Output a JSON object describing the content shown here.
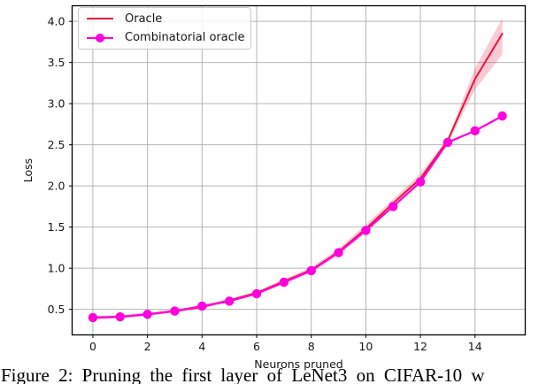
{
  "caption": {
    "text": "Figure 2: Pruning the first layer of LeNet3 on CIFAR-10 w"
  },
  "colors": {
    "oracle_red": "#e8143c",
    "band_pink": "#e8143c",
    "magenta": "#ff00dd",
    "grid_gray": "#b4b4b4",
    "axis_black": "#000000"
  },
  "chart_data": {
    "type": "line",
    "title": "",
    "xlabel": "Neurons pruned",
    "ylabel": "Loss",
    "grid": true,
    "legend_position": "upper-left",
    "xlim": [
      -0.76,
      15.84
    ],
    "ylim": [
      0.19,
      4.19
    ],
    "xticks": [
      0,
      2,
      4,
      6,
      8,
      10,
      12,
      14
    ],
    "yticks": [
      0.5,
      1.0,
      1.5,
      2.0,
      2.5,
      3.0,
      3.5,
      4.0
    ],
    "x": [
      0,
      1,
      2,
      3,
      4,
      5,
      6,
      7,
      8,
      9,
      10,
      11,
      12,
      13,
      14,
      15
    ],
    "series": [
      {
        "name": "Oracle",
        "color": "#e8143c",
        "marker": "none",
        "linewidth": 2,
        "values": [
          0.4,
          0.41,
          0.44,
          0.48,
          0.53,
          0.61,
          0.7,
          0.84,
          0.98,
          1.2,
          1.48,
          1.79,
          2.09,
          2.55,
          3.3,
          3.85
        ],
        "band_lo": [
          0.38,
          0.39,
          0.42,
          0.46,
          0.51,
          0.59,
          0.68,
          0.81,
          0.95,
          1.16,
          1.43,
          1.74,
          2.03,
          2.52,
          3.17,
          3.6
        ],
        "band_hi": [
          0.42,
          0.43,
          0.46,
          0.5,
          0.55,
          0.63,
          0.72,
          0.87,
          1.01,
          1.24,
          1.53,
          1.84,
          2.15,
          2.58,
          3.43,
          4.04
        ],
        "band_opacity": 0.22
      },
      {
        "name": "Combinatorial oracle",
        "color": "#ff00dd",
        "marker": "circle",
        "marker_radius": 5.2,
        "linewidth": 2.2,
        "values": [
          0.4,
          0.41,
          0.44,
          0.48,
          0.54,
          0.6,
          0.69,
          0.83,
          0.97,
          1.19,
          1.46,
          1.75,
          2.05,
          2.53,
          2.67,
          2.85
        ]
      }
    ]
  }
}
